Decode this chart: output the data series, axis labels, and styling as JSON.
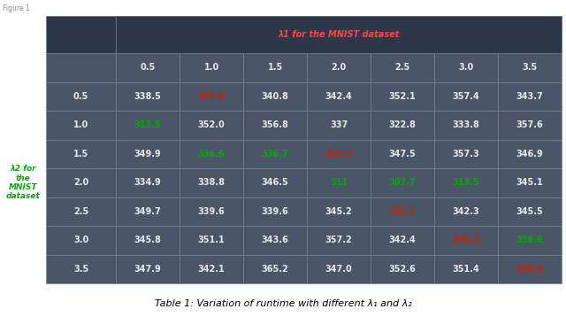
{
  "header_row": [
    "",
    "0.5",
    "1.0",
    "1.5",
    "2.0",
    "2.5",
    "3.0",
    "3.5"
  ],
  "row_labels": [
    "0.5",
    "1.0",
    "1.5",
    "2.0",
    "2.5",
    "3.0",
    "3.5"
  ],
  "table_data": [
    [
      "338.5",
      "325.9",
      "340.8",
      "342.4",
      "352.1",
      "357.4",
      "343.7"
    ],
    [
      "313.5",
      "352.0",
      "356.8",
      "337",
      "322.8",
      "333.8",
      "357.6"
    ],
    [
      "349.9",
      "336.6",
      "336.7",
      "325.3",
      "347.5",
      "357.3",
      "346.9"
    ],
    [
      "334.9",
      "338.8",
      "346.5",
      "311",
      "307.7",
      "313.5",
      "345.1"
    ],
    [
      "349.7",
      "339.6",
      "339.6",
      "345.2",
      "331.1",
      "342.3",
      "345.5"
    ],
    [
      "345.8",
      "351.1",
      "343.6",
      "357.2",
      "342.4",
      "335.3",
      "336.6"
    ],
    [
      "347.9",
      "342.1",
      "365.2",
      "347.0",
      "352.6",
      "351.4",
      "338.5"
    ]
  ],
  "cell_colors": [
    [
      "white",
      "red",
      "white",
      "white",
      "white",
      "white",
      "white"
    ],
    [
      "green",
      "white",
      "white",
      "white",
      "white",
      "white",
      "white"
    ],
    [
      "white",
      "green",
      "green",
      "red",
      "white",
      "white",
      "white"
    ],
    [
      "white",
      "white",
      "white",
      "green",
      "green",
      "green",
      "white"
    ],
    [
      "white",
      "white",
      "white",
      "white",
      "red",
      "white",
      "white"
    ],
    [
      "white",
      "white",
      "white",
      "white",
      "white",
      "red",
      "green"
    ],
    [
      "white",
      "white",
      "white",
      "white",
      "white",
      "white",
      "red"
    ]
  ],
  "top_header": "λ1 for the MNIST dataset",
  "left_label": "λ2 for\nthe\nMNIST\ndataset",
  "caption": "Table 1: Variation of runtime with different λ₁ and λ₂",
  "fig_label": "Figure 1",
  "bg_color": "#4a5568",
  "header_bg": "#2d3748",
  "border_color": "#718096",
  "white_text": "#e8e8e8",
  "red_text": "#cc2200",
  "green_text": "#00aa00",
  "header_red_text": "#ff4444",
  "caption_fontsize": 8,
  "cell_fontsize": 7,
  "header_fontsize": 7
}
